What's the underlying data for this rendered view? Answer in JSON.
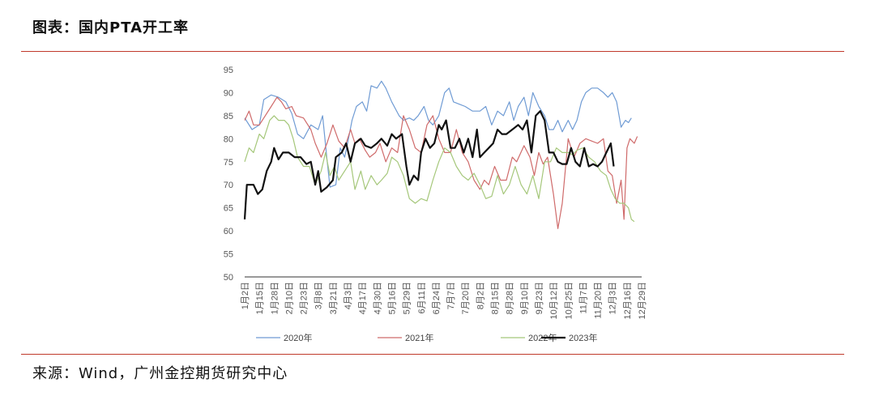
{
  "header": {
    "title": "图表：国内PTA开工率"
  },
  "footer": {
    "source": "来源：Wind，广州金控期货研究中心"
  },
  "colors": {
    "rule": "#c0392b",
    "axis": "#333333",
    "tick": "#555555"
  },
  "chart_data": {
    "type": "line",
    "title": "",
    "xlabel": "",
    "ylabel": "",
    "ylim": [
      50,
      95
    ],
    "yticks": [
      50,
      55,
      60,
      65,
      70,
      75,
      80,
      85,
      90,
      95
    ],
    "grid": false,
    "legend_position": "bottom",
    "categories": [
      "1月2日",
      "1月15日",
      "1月28日",
      "2月10日",
      "2月23日",
      "3月8日",
      "3月21日",
      "4月3日",
      "4月17日",
      "4月30日",
      "5月16日",
      "5月29日",
      "6月11日",
      "6月24日",
      "7月7日",
      "7月20日",
      "8月2日",
      "8月15日",
      "8月28日",
      "9月10日",
      "9月23日",
      "10月12日",
      "10月25日",
      "11月7日",
      "11月20日",
      "12月3日",
      "12月16日",
      "12月29日"
    ],
    "series": [
      {
        "name": "2020年",
        "color": "#6f9bd4",
        "width": 1.2,
        "points": [
          [
            0,
            84.5
          ],
          [
            0.5,
            82
          ],
          [
            1,
            83
          ],
          [
            1.3,
            88.5
          ],
          [
            1.8,
            89.5
          ],
          [
            2.3,
            89
          ],
          [
            2.8,
            88
          ],
          [
            3.2,
            85.5
          ],
          [
            3.6,
            81
          ],
          [
            4,
            80
          ],
          [
            4.5,
            83
          ],
          [
            5,
            82
          ],
          [
            5.3,
            85
          ],
          [
            5.6,
            75.5
          ],
          [
            5.8,
            69.5
          ],
          [
            6.2,
            70
          ],
          [
            6.5,
            78
          ],
          [
            6.8,
            76
          ],
          [
            7,
            79
          ],
          [
            7.3,
            84
          ],
          [
            7.6,
            87
          ],
          [
            8,
            88
          ],
          [
            8.3,
            86
          ],
          [
            8.6,
            91.5
          ],
          [
            9,
            91
          ],
          [
            9.3,
            92.5
          ],
          [
            9.6,
            91
          ],
          [
            10,
            88
          ],
          [
            10.5,
            85
          ],
          [
            10.8,
            84
          ],
          [
            11.2,
            84.5
          ],
          [
            11.5,
            84
          ],
          [
            11.8,
            85
          ],
          [
            12.2,
            87
          ],
          [
            12.5,
            84
          ],
          [
            12.8,
            83
          ],
          [
            13.2,
            85
          ],
          [
            13.6,
            90
          ],
          [
            13.9,
            91
          ],
          [
            14.2,
            88
          ],
          [
            14.6,
            87.5
          ],
          [
            15,
            87
          ],
          [
            15.5,
            86
          ],
          [
            16,
            86
          ],
          [
            16.4,
            87
          ],
          [
            16.8,
            83
          ],
          [
            17.2,
            86
          ],
          [
            17.6,
            85
          ],
          [
            18,
            88
          ],
          [
            18.3,
            84
          ],
          [
            18.6,
            87
          ],
          [
            19,
            89
          ],
          [
            19.3,
            85
          ],
          [
            19.6,
            90
          ],
          [
            20,
            87
          ],
          [
            20.4,
            85
          ],
          [
            20.7,
            82
          ],
          [
            21,
            82
          ],
          [
            21.3,
            84
          ],
          [
            21.6,
            81.5
          ],
          [
            22,
            84
          ],
          [
            22.3,
            82
          ],
          [
            22.6,
            84
          ],
          [
            22.9,
            88
          ],
          [
            23.2,
            90
          ],
          [
            23.6,
            91
          ],
          [
            24,
            91
          ],
          [
            24.4,
            90
          ],
          [
            24.7,
            89
          ],
          [
            25,
            90
          ],
          [
            25.3,
            88
          ],
          [
            25.6,
            82.5
          ],
          [
            25.9,
            84
          ],
          [
            26.1,
            83.5
          ],
          [
            26.3,
            84.5
          ]
        ]
      },
      {
        "name": "2021年",
        "color": "#cf6a6a",
        "width": 1.2,
        "points": [
          [
            0,
            84
          ],
          [
            0.3,
            86
          ],
          [
            0.6,
            83
          ],
          [
            1,
            83
          ],
          [
            1.4,
            85
          ],
          [
            1.8,
            87
          ],
          [
            2.2,
            89
          ],
          [
            2.5,
            88
          ],
          [
            2.8,
            86.5
          ],
          [
            3.2,
            87
          ],
          [
            3.5,
            85
          ],
          [
            4,
            84.5
          ],
          [
            4.5,
            82
          ],
          [
            4.8,
            79
          ],
          [
            5.2,
            76
          ],
          [
            5.6,
            79
          ],
          [
            6,
            83
          ],
          [
            6.4,
            79.5
          ],
          [
            6.8,
            78
          ],
          [
            7.2,
            82
          ],
          [
            7.5,
            79
          ],
          [
            7.8,
            80
          ],
          [
            8.2,
            77.5
          ],
          [
            8.5,
            76
          ],
          [
            8.9,
            77
          ],
          [
            9.2,
            79
          ],
          [
            9.6,
            75
          ],
          [
            10,
            78
          ],
          [
            10.4,
            77
          ],
          [
            10.8,
            85
          ],
          [
            11.2,
            82
          ],
          [
            11.6,
            78
          ],
          [
            12,
            77
          ],
          [
            12.4,
            83
          ],
          [
            12.8,
            85
          ],
          [
            13.2,
            80
          ],
          [
            13.6,
            77
          ],
          [
            14,
            77
          ],
          [
            14.4,
            82
          ],
          [
            14.8,
            77
          ],
          [
            15.2,
            75
          ],
          [
            15.6,
            71
          ],
          [
            16,
            69
          ],
          [
            16.3,
            71
          ],
          [
            16.6,
            70
          ],
          [
            17,
            74
          ],
          [
            17.4,
            71
          ],
          [
            17.8,
            71
          ],
          [
            18.2,
            76
          ],
          [
            18.5,
            75
          ],
          [
            19,
            78.5
          ],
          [
            19.4,
            76
          ],
          [
            19.7,
            72
          ],
          [
            20,
            77
          ],
          [
            20.3,
            74.5
          ],
          [
            20.6,
            76
          ],
          [
            21,
            68
          ],
          [
            21.3,
            60.5
          ],
          [
            21.6,
            66
          ],
          [
            22,
            80
          ],
          [
            22.4,
            76
          ],
          [
            22.8,
            79
          ],
          [
            23.2,
            80
          ],
          [
            23.6,
            79.5
          ],
          [
            24,
            79
          ],
          [
            24.4,
            80
          ],
          [
            24.7,
            73
          ],
          [
            25,
            72
          ],
          [
            25.3,
            66
          ],
          [
            25.6,
            71
          ],
          [
            25.8,
            62.5
          ],
          [
            26,
            78
          ],
          [
            26.2,
            80
          ],
          [
            26.5,
            79
          ],
          [
            26.7,
            80.5
          ]
        ]
      },
      {
        "name": "2022年",
        "color": "#a5c77a",
        "width": 1.2,
        "points": [
          [
            0,
            75
          ],
          [
            0.3,
            78
          ],
          [
            0.6,
            77
          ],
          [
            1,
            81
          ],
          [
            1.3,
            80
          ],
          [
            1.7,
            84
          ],
          [
            2,
            85
          ],
          [
            2.3,
            84
          ],
          [
            2.7,
            84
          ],
          [
            3,
            83
          ],
          [
            3.3,
            80
          ],
          [
            3.6,
            76
          ],
          [
            4,
            74
          ],
          [
            4.4,
            74
          ],
          [
            4.8,
            70
          ],
          [
            5.2,
            73
          ],
          [
            5.5,
            77
          ],
          [
            5.8,
            72
          ],
          [
            6.1,
            74
          ],
          [
            6.4,
            71
          ],
          [
            6.8,
            73
          ],
          [
            7.2,
            75
          ],
          [
            7.5,
            69
          ],
          [
            7.9,
            73
          ],
          [
            8.2,
            69
          ],
          [
            8.6,
            72
          ],
          [
            9,
            70
          ],
          [
            9.3,
            71
          ],
          [
            9.7,
            72.5
          ],
          [
            10,
            76
          ],
          [
            10.4,
            75
          ],
          [
            10.8,
            72
          ],
          [
            11.2,
            67
          ],
          [
            11.6,
            66
          ],
          [
            12,
            67
          ],
          [
            12.4,
            66.5
          ],
          [
            12.8,
            71
          ],
          [
            13.2,
            75
          ],
          [
            13.6,
            78
          ],
          [
            14,
            77
          ],
          [
            14.4,
            74
          ],
          [
            14.8,
            72
          ],
          [
            15.2,
            71
          ],
          [
            15.6,
            72.5
          ],
          [
            16,
            70
          ],
          [
            16.4,
            67
          ],
          [
            16.8,
            67.5
          ],
          [
            17.2,
            72
          ],
          [
            17.6,
            68
          ],
          [
            18,
            70
          ],
          [
            18.4,
            74
          ],
          [
            18.8,
            70
          ],
          [
            19.2,
            68
          ],
          [
            19.6,
            72
          ],
          [
            20,
            67
          ],
          [
            20.4,
            75
          ],
          [
            20.8,
            75
          ],
          [
            21.2,
            78
          ],
          [
            21.6,
            77
          ],
          [
            22,
            77
          ],
          [
            22.3,
            76.5
          ],
          [
            22.6,
            77.5
          ],
          [
            23,
            78
          ],
          [
            23.4,
            76
          ],
          [
            23.8,
            75
          ],
          [
            24.2,
            73
          ],
          [
            24.6,
            72
          ],
          [
            24.9,
            69
          ],
          [
            25.2,
            67
          ],
          [
            25.5,
            66
          ],
          [
            25.8,
            66
          ],
          [
            26.1,
            65
          ],
          [
            26.3,
            62.5
          ],
          [
            26.5,
            62
          ]
        ]
      },
      {
        "name": "2023年",
        "color": "#111111",
        "width": 2.2,
        "points": [
          [
            0,
            62.5
          ],
          [
            0.15,
            70
          ],
          [
            0.6,
            70
          ],
          [
            0.9,
            68
          ],
          [
            1.2,
            69
          ],
          [
            1.5,
            73
          ],
          [
            1.8,
            75
          ],
          [
            2,
            78
          ],
          [
            2.3,
            75.5
          ],
          [
            2.6,
            77
          ],
          [
            3,
            77
          ],
          [
            3.4,
            76
          ],
          [
            3.8,
            76
          ],
          [
            4.2,
            74.5
          ],
          [
            4.5,
            75
          ],
          [
            4.8,
            70
          ],
          [
            5,
            73
          ],
          [
            5.2,
            68.5
          ],
          [
            5.6,
            69.5
          ],
          [
            6,
            71
          ],
          [
            6.2,
            76
          ],
          [
            6.6,
            77
          ],
          [
            6.9,
            79
          ],
          [
            7.2,
            75
          ],
          [
            7.5,
            79
          ],
          [
            7.9,
            80
          ],
          [
            8.2,
            78.5
          ],
          [
            8.6,
            78
          ],
          [
            9,
            79
          ],
          [
            9.3,
            80
          ],
          [
            9.7,
            78.5
          ],
          [
            10,
            81
          ],
          [
            10.3,
            80
          ],
          [
            10.7,
            81
          ],
          [
            11,
            74
          ],
          [
            11.2,
            70
          ],
          [
            11.5,
            72
          ],
          [
            11.8,
            71
          ],
          [
            12,
            77
          ],
          [
            12.3,
            80
          ],
          [
            12.6,
            78
          ],
          [
            12.9,
            79
          ],
          [
            13.2,
            83
          ],
          [
            13.4,
            82
          ],
          [
            13.7,
            84
          ],
          [
            14,
            78
          ],
          [
            14.3,
            78
          ],
          [
            14.6,
            80
          ],
          [
            14.9,
            77
          ],
          [
            15.2,
            80
          ],
          [
            15.5,
            76
          ],
          [
            15.8,
            82
          ],
          [
            16,
            76
          ],
          [
            16.3,
            77
          ],
          [
            16.6,
            78
          ],
          [
            16.9,
            79
          ],
          [
            17.2,
            82
          ],
          [
            17.5,
            81
          ],
          [
            17.8,
            81
          ],
          [
            18.2,
            82
          ],
          [
            18.6,
            83
          ],
          [
            18.9,
            82
          ],
          [
            19.2,
            84
          ],
          [
            19.5,
            77
          ],
          [
            19.8,
            85
          ],
          [
            20.1,
            86
          ],
          [
            20.4,
            84
          ],
          [
            20.7,
            77
          ],
          [
            21,
            77
          ],
          [
            21.3,
            75
          ],
          [
            21.6,
            74.5
          ],
          [
            21.9,
            74.5
          ],
          [
            22.2,
            78
          ],
          [
            22.5,
            75
          ],
          [
            22.8,
            74
          ],
          [
            23.1,
            78
          ],
          [
            23.4,
            74
          ],
          [
            23.7,
            74.5
          ],
          [
            24,
            74
          ],
          [
            24.3,
            75
          ],
          [
            24.6,
            77
          ],
          [
            24.9,
            79
          ],
          [
            25.1,
            74
          ]
        ]
      }
    ]
  }
}
